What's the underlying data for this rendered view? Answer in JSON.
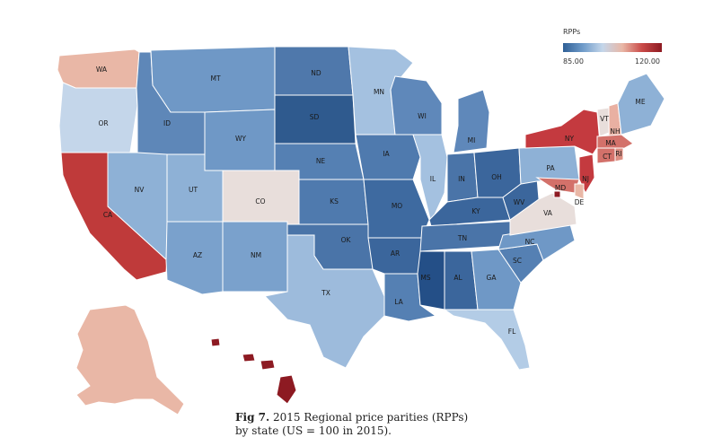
{
  "legend": {
    "title": "RPPs",
    "min_label": "85.00",
    "max_label": "120.00",
    "colors": [
      "#2f5f96",
      "#6f9bc9",
      "#c4d6ea",
      "#e9b7a6",
      "#c94a48",
      "#8d1a22"
    ]
  },
  "caption": {
    "fig_label": "Fig 7.",
    "text_line1": "2015 Regional price parities (RPPs)",
    "text_line2": "by state (US = 100 in 2015)."
  },
  "states": [
    {
      "abbr": "WA",
      "color": "#e9b7a6"
    },
    {
      "abbr": "OR",
      "color": "#c4d6ea"
    },
    {
      "abbr": "CA",
      "color": "#bf3a3a"
    },
    {
      "abbr": "NV",
      "color": "#8eb1d6"
    },
    {
      "abbr": "ID",
      "color": "#5e87b8"
    },
    {
      "abbr": "MT",
      "color": "#6f98c6"
    },
    {
      "abbr": "WY",
      "color": "#6f98c6"
    },
    {
      "abbr": "UT",
      "color": "#8eb1d6"
    },
    {
      "abbr": "CO",
      "color": "#e8dedb"
    },
    {
      "abbr": "AZ",
      "color": "#7aa1cc"
    },
    {
      "abbr": "NM",
      "color": "#7aa1cc"
    },
    {
      "abbr": "ND",
      "color": "#4f78ab"
    },
    {
      "abbr": "SD",
      "color": "#2f5a8e"
    },
    {
      "abbr": "NE",
      "color": "#5580b3"
    },
    {
      "abbr": "KS",
      "color": "#4f7aae"
    },
    {
      "abbr": "OK",
      "color": "#4a74a8"
    },
    {
      "abbr": "TX",
      "color": "#9dbbdc"
    },
    {
      "abbr": "MN",
      "color": "#a4c1e0"
    },
    {
      "abbr": "IA",
      "color": "#4f7aae"
    },
    {
      "abbr": "MO",
      "color": "#3e6aa0"
    },
    {
      "abbr": "AR",
      "color": "#3b669c"
    },
    {
      "abbr": "LA",
      "color": "#5580b3"
    },
    {
      "abbr": "WI",
      "color": "#5f88ba"
    },
    {
      "abbr": "IL",
      "color": "#a4c1e0"
    },
    {
      "abbr": "MI",
      "color": "#5f88ba"
    },
    {
      "abbr": "IN",
      "color": "#4a74a8"
    },
    {
      "abbr": "OH",
      "color": "#3b669c"
    },
    {
      "abbr": "KY",
      "color": "#3b669c"
    },
    {
      "abbr": "TN",
      "color": "#4a74a8"
    },
    {
      "abbr": "MS",
      "color": "#244f87"
    },
    {
      "abbr": "AL",
      "color": "#3b669c"
    },
    {
      "abbr": "GA",
      "color": "#6f98c6"
    },
    {
      "abbr": "FL",
      "color": "#b3cce6"
    },
    {
      "abbr": "SC",
      "color": "#5580b3"
    },
    {
      "abbr": "NC",
      "color": "#6f98c6"
    },
    {
      "abbr": "VA",
      "color": "#e8dedb"
    },
    {
      "abbr": "WV",
      "color": "#3b669c"
    },
    {
      "abbr": "PA",
      "color": "#8eb1d6"
    },
    {
      "abbr": "NY",
      "color": "#c43a3f"
    },
    {
      "abbr": "VT",
      "color": "#e8dedb"
    },
    {
      "abbr": "NH",
      "color": "#e9b0a2"
    },
    {
      "abbr": "ME",
      "color": "#8eb1d6"
    },
    {
      "abbr": "MA",
      "color": "#d3716a"
    },
    {
      "abbr": "RI",
      "color": "#dc8e82"
    },
    {
      "abbr": "CT",
      "color": "#d3716a"
    },
    {
      "abbr": "NJ",
      "color": "#c43a3f"
    },
    {
      "abbr": "DE",
      "color": "#e9b7a6"
    },
    {
      "abbr": "MD",
      "color": "#d3716a"
    },
    {
      "abbr": "DC",
      "color": "#8d1a22"
    },
    {
      "abbr": "AK",
      "color": "#e9b7a6"
    },
    {
      "abbr": "HI",
      "color": "#8d1a22"
    }
  ]
}
